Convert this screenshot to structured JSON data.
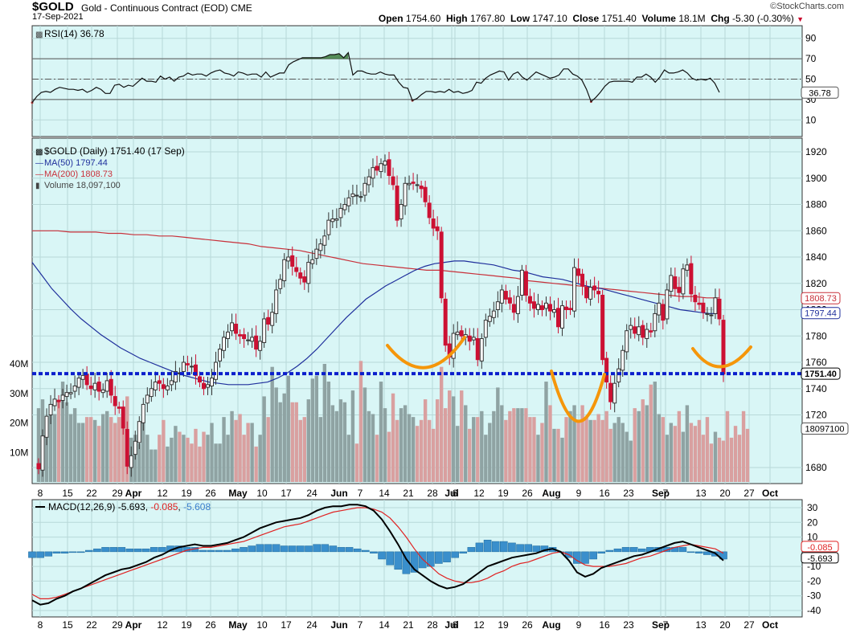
{
  "header": {
    "symbol": "$GOLD",
    "subtitle": "Gold - Continuous Contract (EOD)",
    "exchange": "CME",
    "date": "17-Sep-2021",
    "brand": "©StockCharts.com",
    "open_label": "Open",
    "open": "1754.60",
    "high_label": "High",
    "high": "1767.80",
    "low_label": "Low",
    "low": "1747.10",
    "close_label": "Close",
    "close": "1751.40",
    "volume_label": "Volume",
    "volume": "18.1M",
    "chg_label": "Chg",
    "chg": "-5.30 (-0.30%)"
  },
  "colors": {
    "panel_bg": "#d9f6f6",
    "up": "#333333",
    "down": "#cc1133",
    "ma50": "#1f2f9c",
    "ma200": "#c8303a",
    "support": "#0a1ecc",
    "annotation": "#f5960a",
    "vol_up": "#8fa3a3",
    "vol_down": "#d9a0a0",
    "hist": "#3a8fcc",
    "macd_signal": "#e02222"
  },
  "chart_data": [
    {
      "type": "line",
      "title": "RSI(14) 36.78",
      "ylim": [
        0,
        100
      ],
      "y_ticks": [
        "90",
        "70",
        "50",
        "30",
        "10"
      ],
      "reference_lines": [
        70,
        50,
        30
      ],
      "last_label": "36.78",
      "series": [
        {
          "name": "RSI(14)",
          "x_range": [
            "2021-03-08",
            "2021-09-17"
          ],
          "values": [
            27,
            33,
            37,
            38,
            37,
            40,
            42,
            41,
            40,
            40,
            39,
            40,
            37,
            39,
            42,
            40,
            36,
            36,
            44,
            45,
            42,
            44,
            43,
            47,
            51,
            48,
            48,
            47,
            53,
            50,
            52,
            48,
            52,
            53,
            56,
            54,
            55,
            55,
            53,
            56,
            58,
            59,
            56,
            55,
            53,
            57,
            56,
            54,
            55,
            55,
            52,
            57,
            52,
            54,
            56,
            56,
            64,
            67,
            69,
            71,
            71,
            71,
            71,
            71,
            72,
            74,
            74,
            75,
            71,
            76,
            54,
            58,
            58,
            56,
            55,
            55,
            57,
            55,
            54,
            54,
            47,
            42,
            41,
            29,
            31,
            35,
            38,
            38,
            37,
            38,
            37,
            40,
            37,
            38,
            36,
            37,
            39,
            47,
            46,
            51,
            54,
            56,
            58,
            57,
            49,
            55,
            57,
            52,
            49,
            53,
            57,
            55,
            53,
            51,
            52,
            54,
            60,
            60,
            55,
            53,
            49,
            40,
            28,
            32,
            37,
            43,
            47,
            48,
            48,
            48,
            48,
            47,
            52,
            52,
            55,
            52,
            47,
            52,
            59,
            56,
            56,
            57,
            59,
            56,
            51,
            49,
            50,
            49,
            51,
            46,
            37
          ]
        }
      ]
    },
    {
      "type": "candlestick",
      "title": "$GOLD (Daily) 1751.40 (17 Sep)",
      "ylim": [
        1660,
        1930
      ],
      "y_ticks": [
        1920,
        1900,
        1880,
        1860,
        1840,
        1820,
        1800,
        1780,
        1760,
        1740,
        1720,
        1680
      ],
      "x_tick_labels": [
        "8",
        "15",
        "22",
        "29",
        "Apr",
        "12",
        "19",
        "26",
        "May",
        "10",
        "17",
        "24",
        "Jun",
        "7",
        "14",
        "21",
        "28",
        "Jul",
        "6",
        "12",
        "19",
        "26",
        "Aug",
        "9",
        "16",
        "23",
        "Sep",
        "7",
        "13",
        "20",
        "27",
        "Oct"
      ],
      "legend": [
        "$GOLD (Daily) 1751.40 (17 Sep)",
        "MA(50) 1797.44",
        "MA(200) 1808.73",
        "Volume 18,097,100"
      ],
      "price_labels": {
        "ma200": "1808.73",
        "ma50": "1797.44",
        "close": "1751.40",
        "volume": "18097100"
      },
      "support_line": 1751.4,
      "series": [
        {
          "name": "$GOLD (Daily)",
          "x_range": [
            "2021-03-08",
            "2021-09-17"
          ],
          "close": [
            1679,
            1704,
            1719,
            1728,
            1732,
            1730,
            1735,
            1737,
            1737,
            1742,
            1748,
            1750,
            1743,
            1740,
            1744,
            1738,
            1739,
            1746,
            1735,
            1727,
            1725,
            1710,
            1681,
            1689,
            1700,
            1715,
            1728,
            1735,
            1740,
            1745,
            1744,
            1740,
            1742,
            1746,
            1753,
            1752,
            1760,
            1758,
            1757,
            1750,
            1745,
            1740,
            1743,
            1748,
            1760,
            1770,
            1779,
            1783,
            1790,
            1782,
            1780,
            1778,
            1777,
            1779,
            1770,
            1776,
            1793,
            1789,
            1798,
            1815,
            1823,
            1838,
            1840,
            1833,
            1829,
            1824,
            1821,
            1836,
            1838,
            1846,
            1850,
            1856,
            1868,
            1869,
            1869,
            1877,
            1880,
            1885,
            1888,
            1887,
            1886,
            1896,
            1901,
            1908,
            1906,
            1911,
            1913,
            1902,
            1895,
            1868,
            1880,
            1896,
            1896,
            1896,
            1895,
            1892,
            1882,
            1870,
            1862,
            1860,
            1809,
            1773,
            1764,
            1782,
            1783,
            1780,
            1781,
            1776,
            1779,
            1762,
            1778,
            1792,
            1795,
            1799,
            1806,
            1815,
            1808,
            1805,
            1798,
            1810,
            1830,
            1811,
            1805,
            1801,
            1804,
            1800,
            1805,
            1799,
            1800,
            1787,
            1803,
            1800,
            1800,
            1832,
            1826,
            1818,
            1809,
            1817,
            1815,
            1812,
            1762,
            1745,
            1730,
            1744,
            1755,
            1769,
            1784,
            1788,
            1782,
            1787,
            1779,
            1785,
            1783,
            1797,
            1805,
            1792,
            1815,
            1826,
            1816,
            1813,
            1831,
            1834,
            1812,
            1806,
            1804,
            1798,
            1797,
            1796,
            1809,
            1793,
            1751
          ]
        },
        {
          "name": "MA(50)",
          "values": [
            1836,
            1826,
            1816,
            1808,
            1800,
            1793,
            1787,
            1781,
            1776,
            1771,
            1767,
            1763,
            1760,
            1757,
            1754,
            1751,
            1749,
            1747,
            1745,
            1744,
            1743,
            1743,
            1743,
            1744,
            1745,
            1748,
            1752,
            1757,
            1763,
            1770,
            1778,
            1786,
            1794,
            1801,
            1808,
            1813,
            1818,
            1822,
            1826,
            1830,
            1833,
            1835,
            1836,
            1837,
            1837,
            1836,
            1835,
            1834,
            1832,
            1830,
            1829,
            1827,
            1825,
            1824,
            1823,
            1821,
            1819,
            1817,
            1816,
            1814,
            1812,
            1810,
            1808,
            1806,
            1804,
            1802,
            1800,
            1799,
            1798,
            1797,
            1797
          ]
        },
        {
          "name": "MA(200)",
          "values": [
            1860,
            1860,
            1860,
            1859,
            1859,
            1859,
            1858,
            1858,
            1857,
            1857,
            1856,
            1856,
            1855,
            1854,
            1853,
            1852,
            1851,
            1850,
            1848,
            1847,
            1846,
            1845,
            1843,
            1841,
            1839,
            1837,
            1835,
            1834,
            1833,
            1832,
            1831,
            1830,
            1830,
            1829,
            1828,
            1827,
            1826,
            1825,
            1824,
            1822,
            1821,
            1820,
            1819,
            1818,
            1817,
            1816,
            1815,
            1814,
            1813,
            1812,
            1811,
            1810,
            1810,
            1809,
            1809
          ]
        }
      ]
    },
    {
      "type": "bar",
      "title": "Volume 18,097,100",
      "ylim": [
        0,
        50
      ],
      "y_ticks": [
        "40M",
        "30M",
        "20M",
        "10M"
      ],
      "series": [
        {
          "name": "Volume (M)",
          "values": [
            25,
            28,
            15,
            25,
            23,
            28,
            34,
            27,
            23,
            25,
            20,
            20,
            22,
            22,
            21,
            19,
            23,
            24,
            22,
            20,
            22,
            25,
            29,
            15,
            16,
            13,
            20,
            16,
            11,
            11,
            16,
            21,
            12,
            15,
            19,
            17,
            16,
            15,
            13,
            18,
            12,
            17,
            16,
            20,
            13,
            13,
            22,
            16,
            24,
            21,
            23,
            16,
            20,
            20,
            12,
            16,
            29,
            22,
            39,
            32,
            27,
            30,
            36,
            27,
            27,
            21,
            22,
            28,
            35,
            36,
            22,
            40,
            34,
            26,
            24,
            28,
            27,
            16,
            31,
            13,
            41,
            32,
            24,
            23,
            16,
            34,
            25,
            17,
            30,
            21,
            25,
            26,
            23,
            22,
            19,
            21,
            28,
            21,
            18,
            28,
            39,
            25,
            31,
            29,
            19,
            31,
            26,
            18,
            22,
            22,
            24,
            16,
            20,
            24,
            32,
            26,
            21,
            24,
            25,
            25,
            25,
            25,
            22,
            22,
            16,
            20,
            34,
            26,
            18,
            18,
            15,
            22,
            24,
            26,
            21,
            26,
            22,
            21,
            21,
            23,
            21,
            24,
            18,
            20,
            22,
            20,
            17,
            14,
            25,
            24,
            28,
            26,
            33,
            34,
            23,
            22,
            16,
            20,
            19,
            24,
            17,
            26,
            20,
            19,
            21,
            16,
            22,
            13,
            17,
            15,
            14,
            24,
            15,
            19,
            16,
            24,
            18
          ]
        }
      ]
    },
    {
      "type": "line",
      "title": "MACD(12,26,9) -5.693, -0.085, -5.608",
      "ylim": [
        -42,
        36
      ],
      "y_ticks": [
        "30",
        "20",
        "10",
        "-10",
        "-20",
        "-30",
        "-40"
      ],
      "labels": {
        "signal": "-0.085",
        "macd": "-5.693"
      },
      "series": [
        {
          "name": "MACD(12,26,9)",
          "values": [
            -33,
            -36,
            -35,
            -32,
            -30,
            -27,
            -25,
            -22,
            -19,
            -16,
            -14,
            -12,
            -11,
            -9,
            -7,
            -4,
            -2,
            1,
            3,
            4,
            5,
            4,
            4,
            5,
            6,
            8,
            10,
            13,
            16,
            18,
            20,
            21,
            22,
            23,
            25,
            28,
            30,
            31,
            31,
            32,
            32,
            31,
            28,
            22,
            14,
            5,
            -5,
            -12,
            -16,
            -20,
            -23,
            -25,
            -24,
            -22,
            -18,
            -14,
            -10,
            -8,
            -6,
            -4,
            -3,
            -2,
            -1,
            1,
            2,
            0,
            -6,
            -14,
            -17,
            -15,
            -11,
            -9,
            -7,
            -5,
            -3,
            -2,
            0,
            2,
            4,
            6,
            7,
            5,
            3,
            1,
            -1,
            -6
          ]
        },
        {
          "name": "Signal",
          "values": [
            -29,
            -32,
            -32,
            -31,
            -29,
            -27,
            -25,
            -23,
            -21,
            -19,
            -17,
            -15,
            -13,
            -11,
            -9,
            -7,
            -5,
            -3,
            -1,
            1,
            2,
            3,
            3,
            4,
            5,
            6,
            7,
            9,
            11,
            13,
            15,
            17,
            18,
            19,
            21,
            23,
            25,
            27,
            28,
            29,
            30,
            30,
            29,
            27,
            23,
            17,
            10,
            2,
            -5,
            -10,
            -15,
            -18,
            -20,
            -21,
            -21,
            -20,
            -18,
            -15,
            -13,
            -10,
            -8,
            -7,
            -5,
            -3,
            -1,
            0,
            -2,
            -6,
            -9,
            -10,
            -10,
            -10,
            -9,
            -8,
            -6,
            -4,
            -3,
            -1,
            1,
            3,
            4,
            5,
            4,
            3,
            2,
            -1
          ]
        },
        {
          "name": "Histogram",
          "values": [
            -4,
            -4,
            -3,
            -1,
            -1,
            0,
            0,
            1,
            2,
            3,
            3,
            3,
            2,
            2,
            2,
            3,
            3,
            4,
            4,
            3,
            3,
            1,
            1,
            1,
            1,
            2,
            3,
            4,
            5,
            5,
            5,
            4,
            4,
            4,
            4,
            5,
            5,
            4,
            3,
            3,
            2,
            1,
            -1,
            -5,
            -9,
            -12,
            -15,
            -14,
            -11,
            -10,
            -8,
            -7,
            -4,
            -1,
            3,
            6,
            8,
            7,
            7,
            6,
            5,
            5,
            4,
            4,
            3,
            0,
            -4,
            -8,
            -8,
            -5,
            -1,
            1,
            2,
            3,
            3,
            2,
            3,
            3,
            3,
            3,
            3,
            0,
            -1,
            -2,
            -3,
            -5
          ]
        }
      ]
    }
  ]
}
